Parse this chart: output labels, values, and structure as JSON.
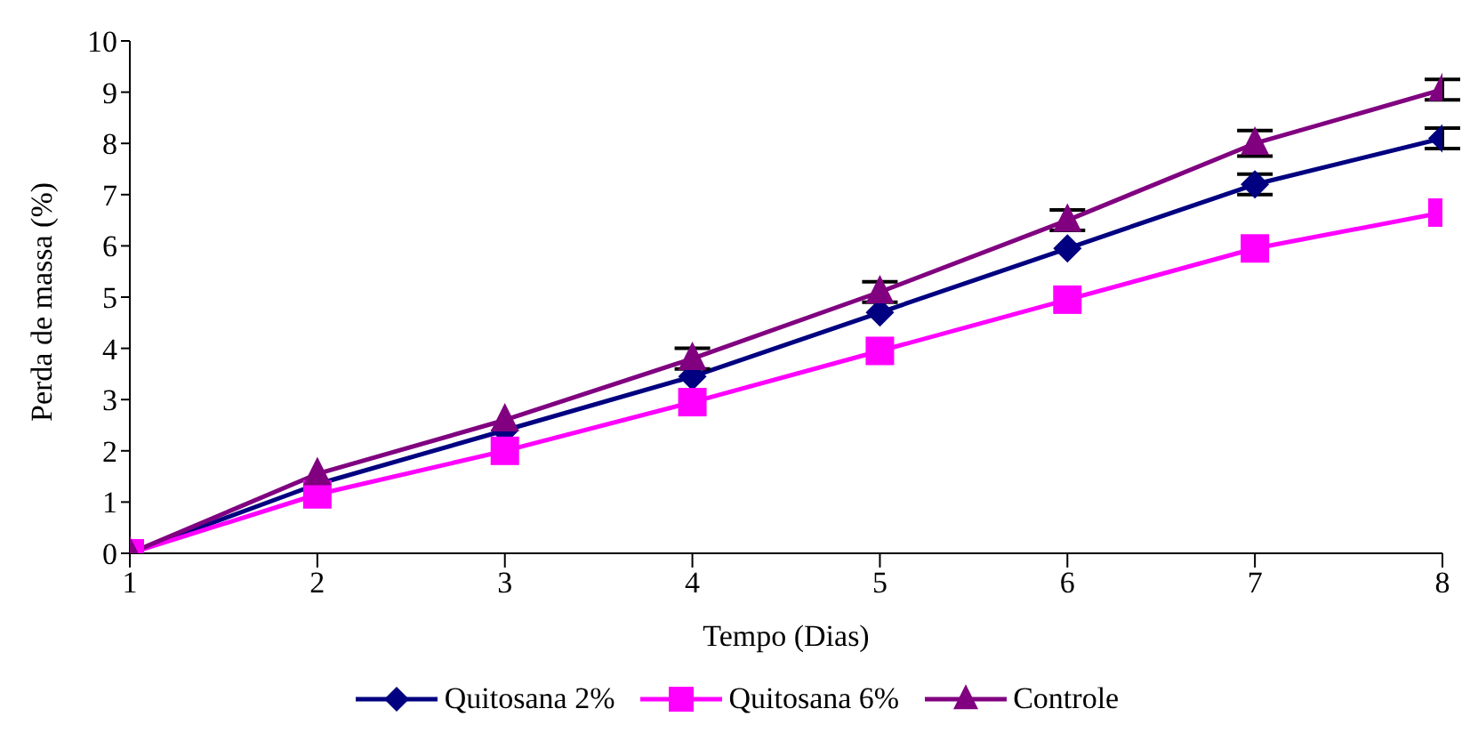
{
  "chart_data": {
    "type": "line",
    "xlabel": "Tempo (Dias)",
    "ylabel": "Perda de massa (%)",
    "x": [
      1,
      2,
      3,
      4,
      5,
      6,
      7,
      8
    ],
    "xlim": [
      1,
      8
    ],
    "xticks": [
      1,
      2,
      3,
      4,
      5,
      6,
      7,
      8
    ],
    "ylim": [
      0,
      10
    ],
    "yticks": [
      0,
      1,
      2,
      3,
      4,
      5,
      6,
      7,
      8,
      9,
      10
    ],
    "grid": false,
    "legend": "bottom",
    "line_style": "solid",
    "series": [
      {
        "name": "Quitosana 2%",
        "color": "#000080",
        "marker": "diamond",
        "values": [
          0,
          1.35,
          2.4,
          3.45,
          4.7,
          5.95,
          7.2,
          8.1
        ],
        "errors": [
          null,
          null,
          null,
          null,
          null,
          null,
          0.2,
          0.2
        ]
      },
      {
        "name": "Quitosana 6%",
        "color": "#ff00ff",
        "marker": "square",
        "values": [
          0,
          1.15,
          2.0,
          2.95,
          3.95,
          4.95,
          5.95,
          6.65
        ]
      },
      {
        "name": "Controle",
        "color": "#800080",
        "marker": "triangle",
        "values": [
          0,
          1.55,
          2.6,
          3.8,
          5.1,
          6.5,
          8.0,
          9.05
        ],
        "errors": [
          null,
          null,
          null,
          0.2,
          0.2,
          0.2,
          0.25,
          0.2
        ]
      }
    ]
  }
}
